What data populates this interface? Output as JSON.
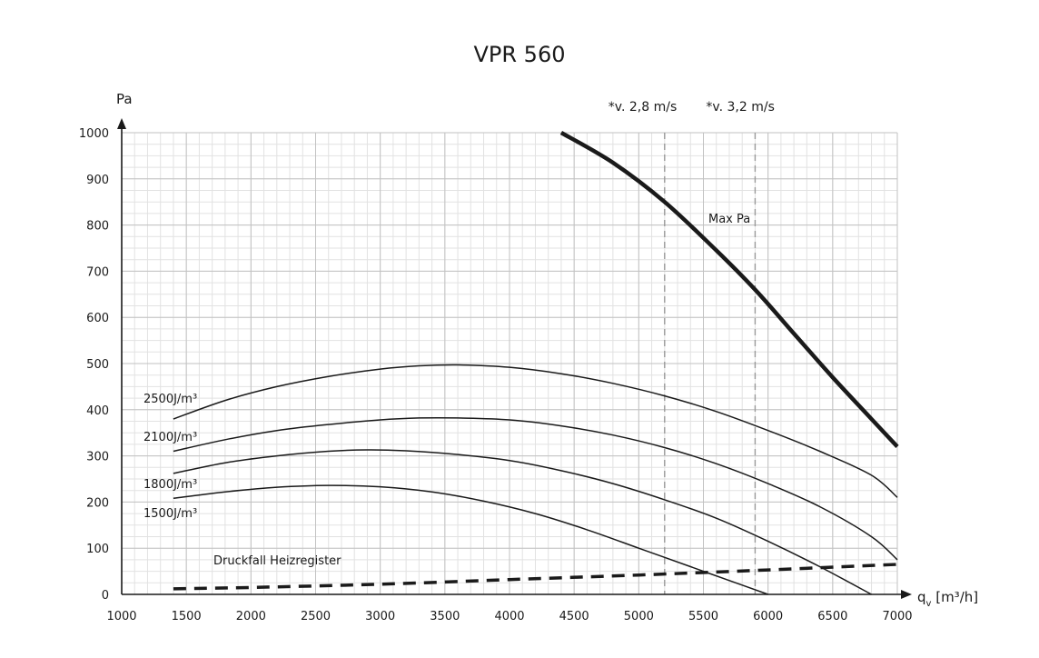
{
  "chart_data": {
    "type": "line",
    "title": "VPR 560",
    "ylabel": "Pa",
    "xlabel_main": "q",
    "xlabel_sub": "v",
    "xlabel_unit": " [m³/h]",
    "xlim": [
      1000,
      7000
    ],
    "ylim": [
      0,
      1000
    ],
    "x_ticks": [
      1000,
      1500,
      2000,
      2500,
      3000,
      3500,
      4000,
      4500,
      5000,
      5500,
      6000,
      6500,
      7000
    ],
    "y_ticks": [
      0,
      100,
      200,
      300,
      400,
      500,
      600,
      700,
      800,
      900,
      1000
    ],
    "grid": true,
    "series": [
      {
        "name": "Max Pa",
        "style": "bold",
        "x": [
          4400,
          4800,
          5200,
          5600,
          5900,
          6200,
          6500,
          6800,
          7000
        ],
        "y": [
          1000,
          935,
          850,
          745,
          660,
          565,
          470,
          380,
          320
        ]
      },
      {
        "name": "2500J/m³",
        "style": "thin",
        "x": [
          1400,
          1800,
          2200,
          2600,
          3000,
          3300,
          3600,
          4000,
          4400,
          4800,
          5200,
          5600,
          6000,
          6400,
          6800,
          7000
        ],
        "y": [
          380,
          420,
          450,
          472,
          488,
          495,
          497,
          492,
          478,
          457,
          430,
          396,
          355,
          310,
          258,
          210
        ]
      },
      {
        "name": "2100J/m³",
        "style": "thin",
        "x": [
          1400,
          1800,
          2200,
          2600,
          3000,
          3300,
          3600,
          4000,
          4400,
          4800,
          5200,
          5600,
          6000,
          6400,
          6800,
          7000
        ],
        "y": [
          310,
          335,
          355,
          368,
          378,
          382,
          382,
          378,
          365,
          345,
          318,
          283,
          240,
          190,
          125,
          75
        ]
      },
      {
        "name": "1800J/m³",
        "style": "thin",
        "x": [
          1400,
          1800,
          2200,
          2600,
          2900,
          3200,
          3600,
          4000,
          4400,
          4800,
          5200,
          5600,
          6000,
          6400,
          6800
        ],
        "y": [
          262,
          285,
          300,
          310,
          313,
          311,
          303,
          290,
          268,
          240,
          205,
          165,
          115,
          60,
          0
        ]
      },
      {
        "name": "1500J/m³",
        "style": "thin",
        "x": [
          1400,
          1800,
          2200,
          2600,
          3000,
          3400,
          3800,
          4200,
          4600,
          5000,
          5400,
          5800,
          6000
        ],
        "y": [
          208,
          222,
          232,
          236,
          233,
          222,
          202,
          175,
          140,
          100,
          60,
          20,
          0
        ]
      },
      {
        "name": "Druckfall Heizregister",
        "style": "dashed",
        "x": [
          1400,
          2000,
          3000,
          4000,
          5000,
          6000,
          7000
        ],
        "y": [
          12,
          15,
          22,
          32,
          42,
          53,
          65
        ]
      }
    ],
    "annotations": [
      {
        "text": "*v. 2,8 m/s",
        "x": 5200
      },
      {
        "text": "*v. 3,2 m/s",
        "x": 5900
      }
    ]
  }
}
